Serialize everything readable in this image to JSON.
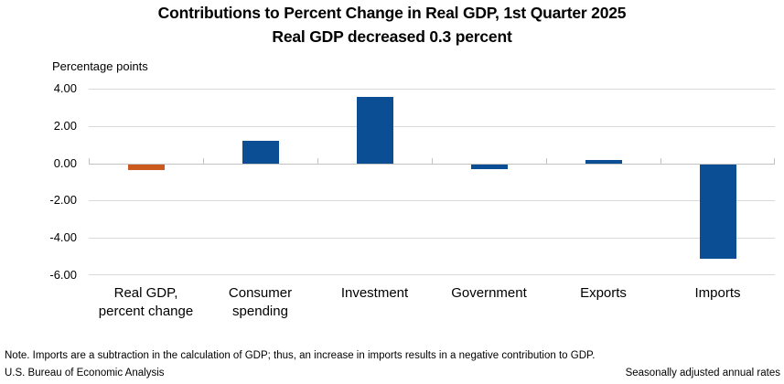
{
  "page": {
    "title": "Contributions to Percent Change in Real GDP, 1st Quarter 2025",
    "subtitle": "Real GDP decreased 0.3 percent",
    "note": "Note. Imports are a subtraction in the calculation of GDP; thus, an increase in imports results in a negative contribution to GDP.",
    "footer_left": "U.S. Bureau of Economic Analysis",
    "footer_right": "Seasonally adjusted annual rates"
  },
  "chart_data": {
    "type": "bar",
    "title": "Contributions to Percent Change in Real GDP, 1st Quarter 2025",
    "subtitle": "Real GDP decreased 0.3 percent",
    "ylabel": "Percentage points",
    "xlabel": "",
    "categories": [
      "Real GDP,\npercent change",
      "Consumer\nspending",
      "Investment",
      "Government",
      "Exports",
      "Imports"
    ],
    "values": [
      -0.3,
      1.21,
      3.6,
      -0.25,
      0.19,
      -5.03
    ],
    "bar_colors": [
      "#CA5A1E",
      "#0C4E94",
      "#0C4E94",
      "#0C4E94",
      "#0C4E94",
      "#0C4E94"
    ],
    "ylim": [
      -6,
      4
    ],
    "yticks": [
      {
        "v": 4,
        "label": "4.00"
      },
      {
        "v": 2,
        "label": "2.00"
      },
      {
        "v": 0,
        "label": "0.00"
      },
      {
        "v": -2,
        "label": "-2.00"
      },
      {
        "v": -4,
        "label": "-4.00"
      },
      {
        "v": -6,
        "label": "-6.00"
      }
    ],
    "grid": true,
    "legend": "none",
    "colors": {
      "bar_default": "#0C4E94",
      "bar_highlight": "#CA5A1E",
      "gridline": "#D9D9D9",
      "axis": "#C3C3C3",
      "text": "#000000",
      "background": "#FFFFFF"
    }
  }
}
